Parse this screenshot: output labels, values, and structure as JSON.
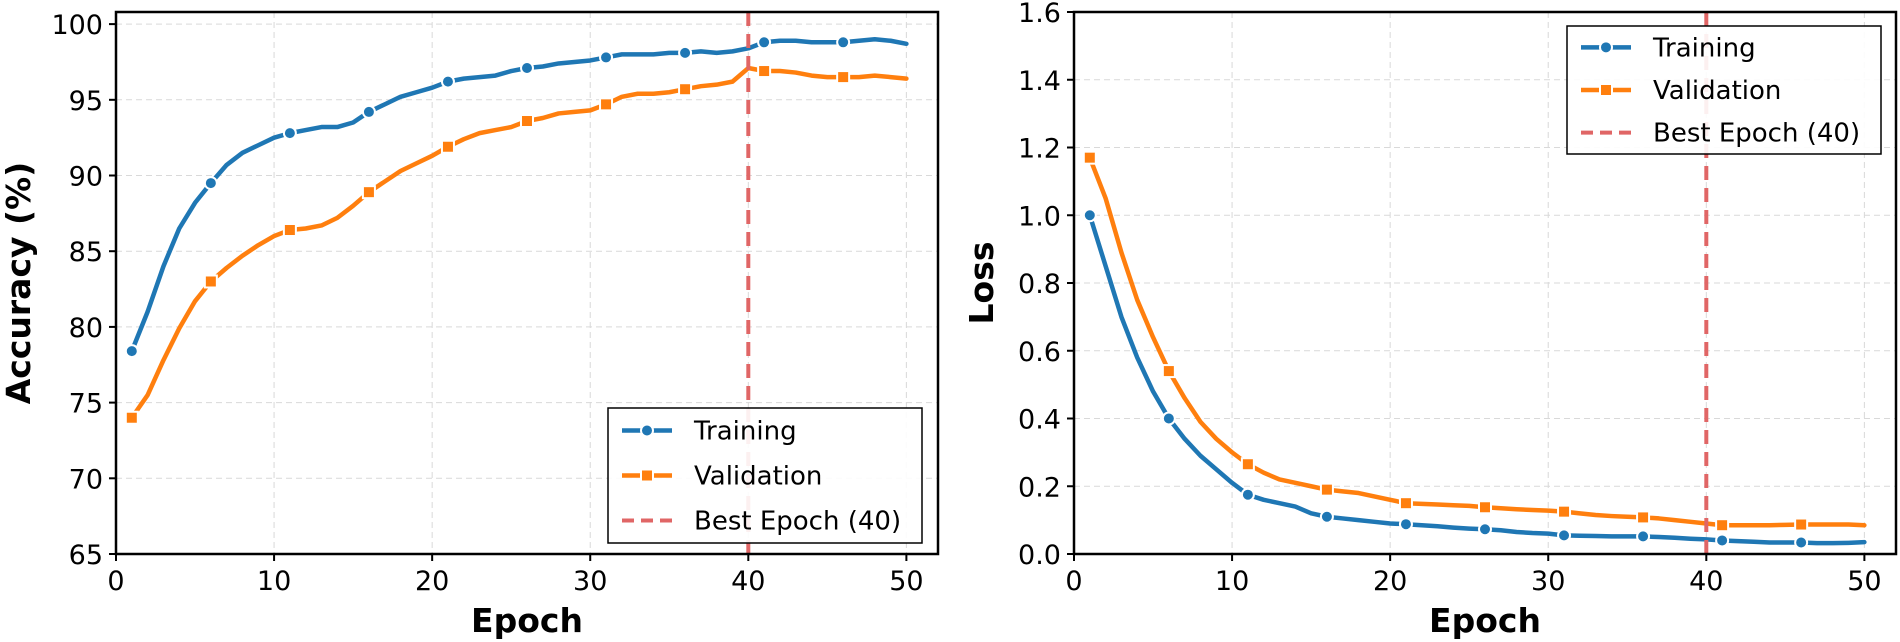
{
  "chart_data": [
    {
      "type": "line",
      "xlabel": "Epoch",
      "ylabel": "Accuracy (%)",
      "xlim": [
        0,
        52
      ],
      "ylim": [
        65,
        100.8
      ],
      "xticks": [
        0,
        10,
        20,
        30,
        40,
        50
      ],
      "yticks": [
        65,
        70,
        75,
        80,
        85,
        90,
        95,
        100
      ],
      "grid": true,
      "legend_position": "bottom-right",
      "best_epoch": 40,
      "series": [
        {
          "name": "Training",
          "color": "#1f77b4",
          "marker": "circle",
          "marker_every": 5,
          "x": [
            1,
            2,
            3,
            4,
            5,
            6,
            7,
            8,
            9,
            10,
            11,
            12,
            13,
            14,
            15,
            16,
            17,
            18,
            19,
            20,
            21,
            22,
            23,
            24,
            25,
            26,
            27,
            28,
            29,
            30,
            31,
            32,
            33,
            34,
            35,
            36,
            37,
            38,
            39,
            40,
            41,
            42,
            43,
            44,
            45,
            46,
            47,
            48,
            49,
            50
          ],
          "values": [
            78.4,
            81.0,
            84.0,
            86.5,
            88.2,
            89.5,
            90.7,
            91.5,
            92.0,
            92.5,
            92.8,
            93.0,
            93.2,
            93.2,
            93.5,
            94.2,
            94.7,
            95.2,
            95.5,
            95.8,
            96.2,
            96.4,
            96.5,
            96.6,
            96.9,
            97.1,
            97.2,
            97.4,
            97.5,
            97.6,
            97.8,
            98.0,
            98.0,
            98.0,
            98.1,
            98.1,
            98.2,
            98.1,
            98.2,
            98.4,
            98.8,
            98.9,
            98.9,
            98.8,
            98.8,
            98.8,
            98.9,
            99.0,
            98.9,
            98.7
          ]
        },
        {
          "name": "Validation",
          "color": "#ff7f0e",
          "marker": "square",
          "marker_every": 5,
          "x": [
            1,
            2,
            3,
            4,
            5,
            6,
            7,
            8,
            9,
            10,
            11,
            12,
            13,
            14,
            15,
            16,
            17,
            18,
            19,
            20,
            21,
            22,
            23,
            24,
            25,
            26,
            27,
            28,
            29,
            30,
            31,
            32,
            33,
            34,
            35,
            36,
            37,
            38,
            39,
            40,
            41,
            42,
            43,
            44,
            45,
            46,
            47,
            48,
            49,
            50
          ],
          "values": [
            74.0,
            75.5,
            77.8,
            79.9,
            81.7,
            83.0,
            83.9,
            84.7,
            85.4,
            86.0,
            86.4,
            86.5,
            86.7,
            87.2,
            88.0,
            88.9,
            89.6,
            90.3,
            90.8,
            91.3,
            91.9,
            92.4,
            92.8,
            93.0,
            93.2,
            93.6,
            93.8,
            94.1,
            94.2,
            94.3,
            94.7,
            95.2,
            95.4,
            95.4,
            95.5,
            95.7,
            95.9,
            96.0,
            96.2,
            97.1,
            96.9,
            96.9,
            96.8,
            96.6,
            96.5,
            96.5,
            96.5,
            96.6,
            96.5,
            96.4
          ]
        },
        {
          "name": "Best Epoch (40)",
          "color": "#e06666",
          "style": "dashed",
          "x": [
            40,
            40
          ],
          "values": [
            65,
            100.8
          ]
        }
      ]
    },
    {
      "type": "line",
      "xlabel": "Epoch",
      "ylabel": "Loss",
      "xlim": [
        0,
        52
      ],
      "ylim": [
        0,
        1.6
      ],
      "xticks": [
        0,
        10,
        20,
        30,
        40,
        50
      ],
      "yticks": [
        0.0,
        0.2,
        0.4,
        0.6,
        0.8,
        1.0,
        1.2,
        1.4,
        1.6
      ],
      "grid": true,
      "legend_position": "top-right",
      "best_epoch": 40,
      "series": [
        {
          "name": "Training",
          "color": "#1f77b4",
          "marker": "circle",
          "marker_every": 5,
          "x": [
            1,
            2,
            3,
            4,
            5,
            6,
            7,
            8,
            9,
            10,
            11,
            12,
            13,
            14,
            15,
            16,
            17,
            18,
            19,
            20,
            21,
            22,
            23,
            24,
            25,
            26,
            27,
            28,
            29,
            30,
            31,
            32,
            33,
            34,
            35,
            36,
            37,
            38,
            39,
            40,
            41,
            42,
            43,
            44,
            45,
            46,
            47,
            48,
            49,
            50
          ],
          "values": [
            1.0,
            0.85,
            0.7,
            0.58,
            0.48,
            0.4,
            0.34,
            0.29,
            0.25,
            0.21,
            0.175,
            0.16,
            0.15,
            0.14,
            0.12,
            0.11,
            0.105,
            0.1,
            0.095,
            0.09,
            0.088,
            0.085,
            0.082,
            0.078,
            0.075,
            0.073,
            0.07,
            0.065,
            0.062,
            0.06,
            0.055,
            0.054,
            0.053,
            0.052,
            0.052,
            0.052,
            0.05,
            0.048,
            0.045,
            0.043,
            0.04,
            0.038,
            0.036,
            0.034,
            0.034,
            0.034,
            0.032,
            0.032,
            0.033,
            0.035
          ]
        },
        {
          "name": "Validation",
          "color": "#ff7f0e",
          "marker": "square",
          "marker_every": 5,
          "x": [
            1,
            2,
            3,
            4,
            5,
            6,
            7,
            8,
            9,
            10,
            11,
            12,
            13,
            14,
            15,
            16,
            17,
            18,
            19,
            20,
            21,
            22,
            23,
            24,
            25,
            26,
            27,
            28,
            29,
            30,
            31,
            32,
            33,
            34,
            35,
            36,
            37,
            38,
            39,
            40,
            41,
            42,
            43,
            44,
            45,
            46,
            47,
            48,
            49,
            50
          ],
          "values": [
            1.17,
            1.05,
            0.89,
            0.75,
            0.64,
            0.54,
            0.46,
            0.39,
            0.34,
            0.3,
            0.265,
            0.24,
            0.22,
            0.21,
            0.2,
            0.19,
            0.185,
            0.18,
            0.17,
            0.16,
            0.15,
            0.148,
            0.146,
            0.144,
            0.142,
            0.138,
            0.135,
            0.132,
            0.13,
            0.128,
            0.125,
            0.12,
            0.115,
            0.112,
            0.11,
            0.108,
            0.105,
            0.1,
            0.095,
            0.09,
            0.085,
            0.085,
            0.085,
            0.085,
            0.086,
            0.087,
            0.087,
            0.087,
            0.087,
            0.085
          ]
        },
        {
          "name": "Best Epoch (40)",
          "color": "#e06666",
          "style": "dashed",
          "x": [
            40,
            40
          ],
          "values": [
            0,
            1.6
          ]
        }
      ]
    }
  ]
}
